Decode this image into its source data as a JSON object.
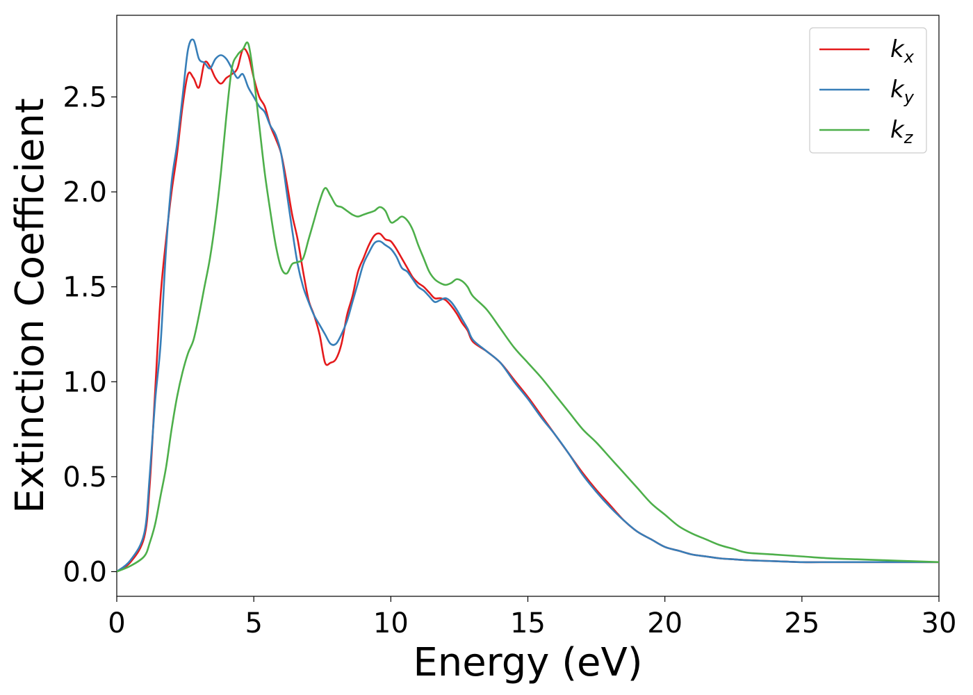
{
  "chart_data": {
    "type": "line",
    "xlabel": "Energy (eV)",
    "ylabel": "Extinction Coefficient",
    "xlim": [
      0,
      30
    ],
    "ylim": [
      -0.13,
      2.93
    ],
    "xticks": [
      0,
      5,
      10,
      15,
      20,
      25,
      30
    ],
    "yticks": [
      0.0,
      0.5,
      1.0,
      1.5,
      2.0,
      2.5
    ],
    "xtick_labels": [
      "0",
      "5",
      "10",
      "15",
      "20",
      "25",
      "30"
    ],
    "ytick_labels": [
      "0.0",
      "0.5",
      "1.0",
      "1.5",
      "2.0",
      "2.5"
    ],
    "grid": false,
    "legend_position": "top-right",
    "series": [
      {
        "name": "k_x",
        "label_main": "k",
        "label_sub": "x",
        "color": "#e41a1c",
        "x": [
          0,
          0.5,
          1,
          1.2,
          1.4,
          1.6,
          1.8,
          2,
          2.2,
          2.4,
          2.6,
          2.8,
          3,
          3.2,
          3.4,
          3.6,
          3.8,
          4,
          4.2,
          4.4,
          4.6,
          4.8,
          5,
          5.2,
          5.4,
          5.6,
          5.8,
          6,
          6.2,
          6.4,
          6.6,
          6.8,
          7,
          7.2,
          7.4,
          7.6,
          7.8,
          8,
          8.2,
          8.4,
          8.6,
          8.8,
          9,
          9.2,
          9.4,
          9.6,
          9.8,
          10,
          10.2,
          10.4,
          10.6,
          10.8,
          11,
          11.2,
          11.4,
          11.6,
          11.8,
          12,
          12.2,
          12.4,
          12.6,
          12.8,
          13,
          13.5,
          14,
          14.5,
          15,
          15.5,
          16,
          16.5,
          17,
          17.5,
          18,
          18.5,
          19,
          19.5,
          20,
          20.5,
          21,
          21.5,
          22,
          22.5,
          23,
          24,
          25,
          26,
          27,
          28,
          29,
          30
        ],
        "y": [
          0,
          0.05,
          0.18,
          0.45,
          0.95,
          1.45,
          1.75,
          2.0,
          2.2,
          2.45,
          2.62,
          2.6,
          2.55,
          2.68,
          2.66,
          2.6,
          2.57,
          2.6,
          2.62,
          2.65,
          2.75,
          2.72,
          2.6,
          2.5,
          2.45,
          2.35,
          2.28,
          2.2,
          2.05,
          1.88,
          1.75,
          1.58,
          1.43,
          1.35,
          1.25,
          1.1,
          1.1,
          1.12,
          1.2,
          1.35,
          1.45,
          1.58,
          1.65,
          1.72,
          1.77,
          1.78,
          1.75,
          1.74,
          1.7,
          1.65,
          1.6,
          1.55,
          1.52,
          1.5,
          1.47,
          1.44,
          1.44,
          1.43,
          1.4,
          1.36,
          1.31,
          1.27,
          1.21,
          1.16,
          1.1,
          1.01,
          0.92,
          0.82,
          0.72,
          0.62,
          0.52,
          0.43,
          0.35,
          0.27,
          0.21,
          0.17,
          0.13,
          0.11,
          0.09,
          0.08,
          0.07,
          0.065,
          0.06,
          0.055,
          0.05,
          0.05,
          0.05,
          0.05,
          0.05,
          0.05
        ],
        "y_note": ""
      },
      {
        "name": "k_y",
        "label_main": "k",
        "label_sub": "y",
        "color": "#377eb8",
        "x": [
          0,
          0.5,
          1,
          1.2,
          1.4,
          1.6,
          1.8,
          2,
          2.2,
          2.4,
          2.6,
          2.8,
          3,
          3.2,
          3.4,
          3.6,
          3.8,
          4,
          4.2,
          4.4,
          4.6,
          4.8,
          5,
          5.2,
          5.4,
          5.6,
          5.8,
          6,
          6.2,
          6.4,
          6.6,
          6.8,
          7,
          7.2,
          7.4,
          7.6,
          7.8,
          8,
          8.2,
          8.4,
          8.6,
          8.8,
          9,
          9.2,
          9.4,
          9.6,
          9.8,
          10,
          10.2,
          10.4,
          10.6,
          10.8,
          11,
          11.2,
          11.4,
          11.6,
          11.8,
          12,
          12.2,
          12.4,
          12.6,
          12.8,
          13,
          13.5,
          14,
          14.5,
          15,
          15.5,
          16,
          16.5,
          17,
          17.5,
          18,
          18.5,
          19,
          19.5,
          20,
          20.5,
          21,
          21.5,
          22,
          22.5,
          23,
          24,
          25,
          26,
          27,
          28,
          29,
          30
        ],
        "y": [
          0,
          0.06,
          0.2,
          0.5,
          0.9,
          1.2,
          1.7,
          2.05,
          2.25,
          2.5,
          2.75,
          2.8,
          2.7,
          2.68,
          2.65,
          2.7,
          2.72,
          2.7,
          2.65,
          2.6,
          2.62,
          2.55,
          2.5,
          2.45,
          2.42,
          2.35,
          2.3,
          2.2,
          2.0,
          1.8,
          1.62,
          1.5,
          1.42,
          1.35,
          1.3,
          1.25,
          1.2,
          1.2,
          1.25,
          1.32,
          1.42,
          1.52,
          1.62,
          1.68,
          1.73,
          1.74,
          1.72,
          1.7,
          1.66,
          1.6,
          1.58,
          1.54,
          1.5,
          1.48,
          1.45,
          1.42,
          1.43,
          1.44,
          1.42,
          1.38,
          1.33,
          1.28,
          1.22,
          1.16,
          1.1,
          1.0,
          0.91,
          0.81,
          0.72,
          0.62,
          0.51,
          0.42,
          0.34,
          0.27,
          0.21,
          0.17,
          0.13,
          0.11,
          0.09,
          0.08,
          0.07,
          0.065,
          0.06,
          0.055,
          0.05,
          0.05,
          0.05,
          0.05,
          0.05,
          0.05
        ],
        "y_note": ""
      },
      {
        "name": "k_z",
        "label_main": "k",
        "label_sub": "z",
        "color": "#4daf4a",
        "x": [
          0,
          0.5,
          1,
          1.2,
          1.4,
          1.6,
          1.8,
          2,
          2.2,
          2.4,
          2.6,
          2.8,
          3,
          3.2,
          3.4,
          3.6,
          3.8,
          4,
          4.2,
          4.4,
          4.6,
          4.8,
          5,
          5.2,
          5.4,
          5.6,
          5.8,
          6,
          6.2,
          6.4,
          6.6,
          6.8,
          7,
          7.2,
          7.4,
          7.6,
          7.8,
          8,
          8.2,
          8.4,
          8.6,
          8.8,
          9,
          9.2,
          9.4,
          9.6,
          9.8,
          10,
          10.2,
          10.4,
          10.6,
          10.8,
          11,
          11.2,
          11.4,
          11.6,
          11.8,
          12,
          12.2,
          12.4,
          12.6,
          12.8,
          13,
          13.5,
          14,
          14.5,
          15,
          15.5,
          16,
          16.5,
          17,
          17.5,
          18,
          18.5,
          19,
          19.5,
          20,
          20.5,
          21,
          21.5,
          22,
          22.5,
          23,
          24,
          25,
          26,
          27,
          28,
          29,
          30
        ],
        "y": [
          0,
          0.03,
          0.08,
          0.15,
          0.25,
          0.4,
          0.55,
          0.75,
          0.92,
          1.05,
          1.15,
          1.22,
          1.35,
          1.5,
          1.65,
          1.85,
          2.1,
          2.4,
          2.65,
          2.72,
          2.75,
          2.78,
          2.6,
          2.35,
          2.1,
          1.9,
          1.72,
          1.6,
          1.57,
          1.62,
          1.63,
          1.65,
          1.75,
          1.85,
          1.95,
          2.02,
          1.98,
          1.93,
          1.92,
          1.9,
          1.88,
          1.87,
          1.88,
          1.89,
          1.9,
          1.92,
          1.9,
          1.84,
          1.85,
          1.87,
          1.85,
          1.8,
          1.72,
          1.65,
          1.58,
          1.54,
          1.52,
          1.51,
          1.52,
          1.54,
          1.53,
          1.5,
          1.45,
          1.38,
          1.28,
          1.18,
          1.1,
          1.02,
          0.93,
          0.84,
          0.75,
          0.68,
          0.6,
          0.52,
          0.44,
          0.36,
          0.3,
          0.24,
          0.2,
          0.17,
          0.14,
          0.12,
          0.1,
          0.09,
          0.08,
          0.07,
          0.065,
          0.06,
          0.055,
          0.05
        ],
        "y_note": ""
      }
    ]
  }
}
